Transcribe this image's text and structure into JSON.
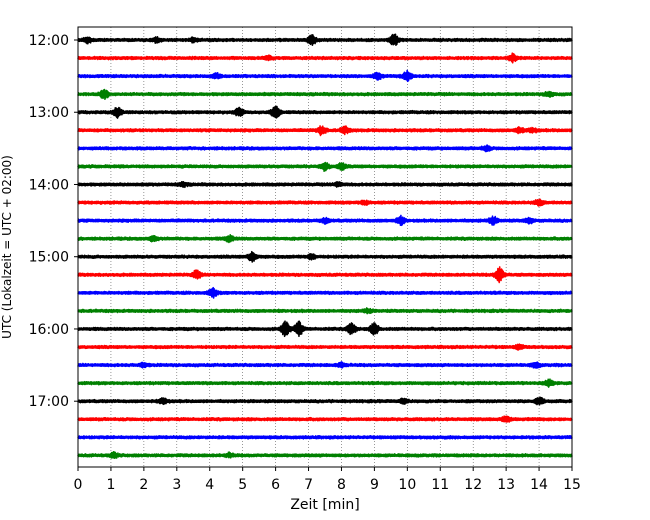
{
  "chart_data": {
    "type": "line",
    "subtype": "helicorder",
    "title": "",
    "xlabel": "Zeit  [min]",
    "ylabel": "UTC (Lokalzeit = UTC + 02:00)",
    "xlim": [
      0,
      15
    ],
    "x_ticks": [
      "0",
      "1",
      "2",
      "3",
      "4",
      "5",
      "6",
      "7",
      "8",
      "9",
      "10",
      "11",
      "12",
      "13",
      "14",
      "15"
    ],
    "y_ticks": [
      "12:00",
      "13:00",
      "14:00",
      "15:00",
      "16:00",
      "17:00"
    ],
    "traces_per_hour": 4,
    "trace_minutes": 15,
    "start_time": "12:00",
    "grid": {
      "vertical_dotted": true
    },
    "color_cycle": [
      "#000000",
      "#ff0000",
      "#0000ff",
      "#008000"
    ],
    "series": [
      {
        "start": "12:00",
        "events": [
          [
            0.3,
            0.6
          ],
          [
            2.4,
            0.5
          ],
          [
            7.1,
            1.0
          ],
          [
            9.6,
            1.2
          ],
          [
            3.5,
            0.4
          ]
        ]
      },
      {
        "start": "12:15",
        "events": [
          [
            13.2,
            0.8
          ],
          [
            5.8,
            0.4
          ]
        ]
      },
      {
        "start": "12:30",
        "events": [
          [
            4.2,
            0.5
          ],
          [
            9.1,
            0.6
          ],
          [
            10.0,
            1.0
          ]
        ]
      },
      {
        "start": "12:45",
        "events": [
          [
            0.8,
            0.9
          ],
          [
            14.3,
            0.5
          ]
        ]
      },
      {
        "start": "13:00",
        "events": [
          [
            1.2,
            1.0
          ],
          [
            4.9,
            0.9
          ],
          [
            6.0,
            1.2
          ]
        ]
      },
      {
        "start": "13:15",
        "events": [
          [
            7.4,
            0.9
          ],
          [
            8.1,
            0.7
          ],
          [
            13.4,
            0.5
          ],
          [
            13.8,
            0.5
          ]
        ]
      },
      {
        "start": "13:30",
        "events": [
          [
            12.4,
            0.5
          ]
        ]
      },
      {
        "start": "13:45",
        "events": [
          [
            7.5,
            0.8
          ],
          [
            8.0,
            0.6
          ]
        ]
      },
      {
        "start": "14:00",
        "events": [
          [
            3.2,
            0.4
          ],
          [
            7.9,
            0.4
          ]
        ]
      },
      {
        "start": "14:15",
        "events": [
          [
            14.0,
            0.6
          ],
          [
            8.7,
            0.4
          ]
        ]
      },
      {
        "start": "14:30",
        "events": [
          [
            7.5,
            0.5
          ],
          [
            9.8,
            0.8
          ],
          [
            12.6,
            0.8
          ],
          [
            13.7,
            0.5
          ]
        ]
      },
      {
        "start": "14:45",
        "events": [
          [
            2.3,
            0.5
          ],
          [
            4.6,
            0.6
          ]
        ]
      },
      {
        "start": "15:00",
        "events": [
          [
            5.3,
            1.0
          ],
          [
            7.1,
            0.5
          ]
        ]
      },
      {
        "start": "15:15",
        "events": [
          [
            3.6,
            0.8
          ],
          [
            12.8,
            1.6
          ]
        ]
      },
      {
        "start": "15:30",
        "events": [
          [
            4.1,
            0.9
          ]
        ]
      },
      {
        "start": "15:45",
        "events": [
          [
            8.8,
            0.4
          ]
        ]
      },
      {
        "start": "16:00",
        "events": [
          [
            6.3,
            1.6
          ],
          [
            6.7,
            1.5
          ],
          [
            8.3,
            1.2
          ],
          [
            9.0,
            1.2
          ]
        ]
      },
      {
        "start": "16:15",
        "events": [
          [
            13.4,
            0.4
          ]
        ]
      },
      {
        "start": "16:30",
        "events": [
          [
            2.0,
            0.4
          ],
          [
            8.0,
            0.4
          ],
          [
            13.9,
            0.5
          ]
        ]
      },
      {
        "start": "16:45",
        "events": [
          [
            14.3,
            0.6
          ]
        ]
      },
      {
        "start": "17:00",
        "events": [
          [
            2.6,
            0.6
          ],
          [
            9.9,
            0.5
          ],
          [
            14.0,
            0.8
          ]
        ]
      },
      {
        "start": "17:15",
        "events": [
          [
            13.0,
            0.7
          ]
        ]
      },
      {
        "start": "17:30",
        "events": []
      },
      {
        "start": "17:45",
        "events": [
          [
            1.1,
            0.5
          ],
          [
            4.6,
            0.4
          ]
        ]
      }
    ]
  }
}
